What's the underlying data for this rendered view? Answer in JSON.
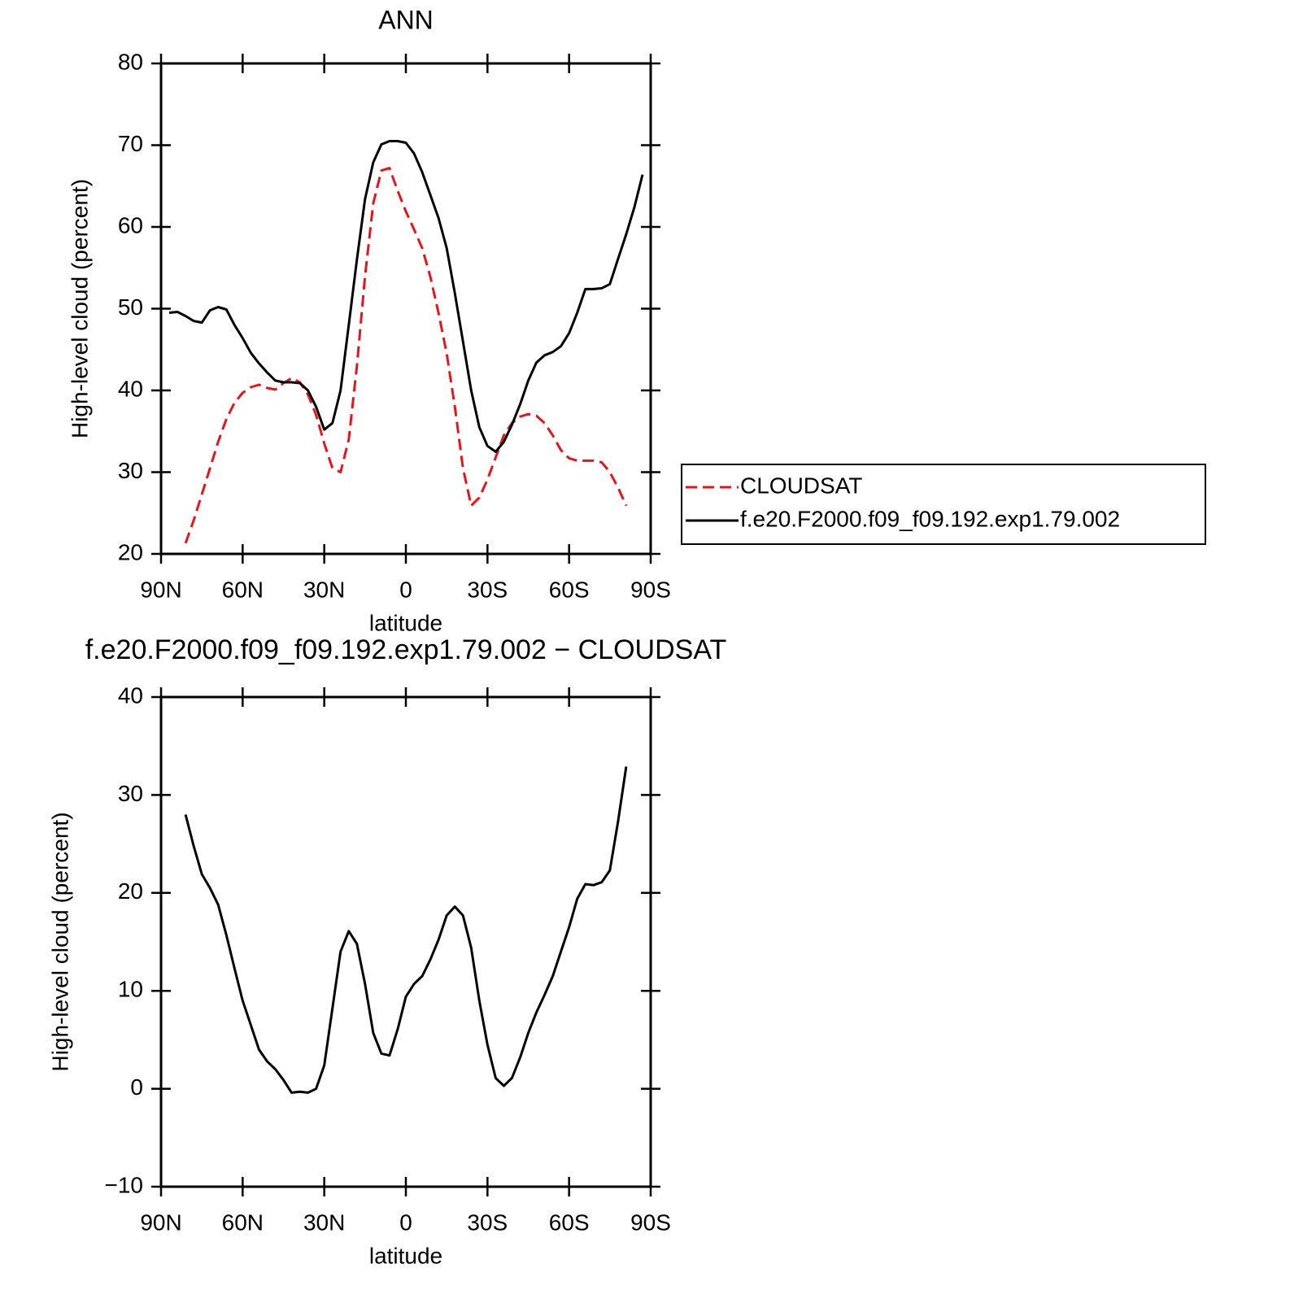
{
  "chart_data": [
    {
      "type": "line",
      "title": "ANN",
      "xlabel": "latitude",
      "ylabel": "High-level cloud (percent)",
      "x": [
        87,
        84,
        81,
        78,
        75,
        72,
        69,
        66,
        63,
        60,
        57,
        54,
        51,
        48,
        45,
        42,
        39,
        36,
        33,
        30,
        27,
        24,
        21,
        18,
        15,
        12,
        9,
        6,
        3,
        0,
        -3,
        -6,
        -9,
        -12,
        -15,
        -18,
        -21,
        -24,
        -27,
        -30,
        -33,
        -36,
        -39,
        -42,
        -45,
        -48,
        -51,
        -54,
        -57,
        -60,
        -63,
        -66,
        -69,
        -72,
        -75,
        -78,
        -81,
        -84,
        -87
      ],
      "series": [
        {
          "name": "CLOUDSAT",
          "color": "#e8141c",
          "linestyle": "dashed",
          "values": [
            null,
            null,
            21.3,
            24.1,
            27.3,
            30.5,
            33.7,
            36.5,
            38.5,
            39.7,
            40.4,
            40.7,
            40.3,
            40.1,
            40.9,
            41.5,
            41,
            39.5,
            37,
            33.5,
            30.5,
            30,
            34,
            43,
            54,
            62.9,
            66.9,
            67.2,
            64.4,
            61.9,
            59.7,
            57.4,
            53.9,
            49.5,
            44.5,
            38,
            30.5,
            25.9,
            26.9,
            29.1,
            31.8,
            34.5,
            36,
            36.8,
            37.1,
            36.9,
            36,
            34.5,
            32.7,
            31.7,
            31.4,
            31.4,
            31.4,
            31.2,
            30,
            28.1,
            25.9,
            null,
            null
          ]
        },
        {
          "name": "f.e20.F2000.f09_f09.192.exp1.79.002",
          "color": "#000000",
          "linestyle": "solid",
          "values": [
            49.5,
            49.6,
            49.1,
            48.5,
            48.3,
            49.8,
            50.2,
            49.9,
            48,
            46.4,
            44.6,
            43.3,
            42.2,
            41.2,
            41,
            41,
            40.9,
            40,
            38,
            35.2,
            36,
            40,
            48,
            56,
            63.4,
            67.9,
            70.1,
            70.5,
            70.5,
            70.3,
            69,
            66.7,
            63.9,
            61.1,
            57.4,
            51.9,
            46,
            40,
            35.5,
            33.2,
            32.5,
            33.7,
            35.8,
            38.3,
            41.2,
            43.4,
            44.3,
            44.7,
            45.4,
            47,
            49.5,
            52.4,
            52.4,
            52.5,
            53,
            56.1,
            59.1,
            62.4,
            66.4
          ]
        }
      ],
      "xlim": [
        90,
        -90
      ],
      "xticks": [
        {
          "value": 90,
          "label": "90N"
        },
        {
          "value": 60,
          "label": "60N"
        },
        {
          "value": 30,
          "label": "30N"
        },
        0,
        {
          "value": -30,
          "label": "30S"
        },
        {
          "value": -60,
          "label": "60S"
        },
        {
          "value": -90,
          "label": "90S"
        }
      ],
      "ylim": [
        20,
        80
      ],
      "yticks": [
        20,
        30,
        40,
        50,
        60,
        70,
        80
      ],
      "legend": "right"
    },
    {
      "type": "line",
      "title": "f.e20.F2000.f09_f09.192.exp1.79.002 − CLOUDSAT",
      "xlabel": "latitude",
      "ylabel": "High-level cloud (percent)",
      "x": [
        81,
        78,
        75,
        72,
        69,
        66,
        63,
        60,
        57,
        54,
        51,
        48,
        45,
        42,
        39,
        36,
        33,
        30,
        27,
        24,
        21,
        18,
        15,
        12,
        9,
        6,
        3,
        0,
        -3,
        -6,
        -9,
        -12,
        -15,
        -18,
        -21,
        -24,
        -27,
        -30,
        -33,
        -36,
        -39,
        -42,
        -45,
        -48,
        -51,
        -54,
        -57,
        -60,
        -63,
        -66,
        -69,
        -72,
        -75,
        -78,
        -81
      ],
      "series": [
        {
          "color": "#000000",
          "linestyle": "solid",
          "values": [
            28,
            24.8,
            21.9,
            20.5,
            18.8,
            15.7,
            12.3,
            9,
            6.5,
            4,
            2.8,
            2,
            0.9,
            -0.4,
            -0.3,
            -0.4,
            0,
            2.4,
            8.2,
            14,
            16.1,
            14.8,
            10.7,
            5.7,
            3.6,
            3.4,
            6.1,
            9.4,
            10.7,
            11.5,
            13.2,
            15.2,
            17.7,
            18.6,
            17.7,
            14.4,
            9,
            4.5,
            1.1,
            0.3,
            1.1,
            3.2,
            5.7,
            7.8,
            9.6,
            11.5,
            14,
            16.5,
            19.4,
            20.9,
            20.8,
            21.1,
            22.3,
            27.3,
            32.9
          ]
        }
      ],
      "xlim": [
        90,
        -90
      ],
      "xticks": [
        {
          "value": 90,
          "label": "90N"
        },
        {
          "value": 60,
          "label": "60N"
        },
        {
          "value": 30,
          "label": "30N"
        },
        0,
        {
          "value": -30,
          "label": "30S"
        },
        {
          "value": -60,
          "label": "60S"
        },
        {
          "value": -90,
          "label": "90S"
        }
      ],
      "ylim": [
        -10,
        40
      ],
      "yticks": [
        {
          "value": -10,
          "label": "−10"
        },
        0,
        10,
        20,
        30,
        40
      ]
    }
  ]
}
